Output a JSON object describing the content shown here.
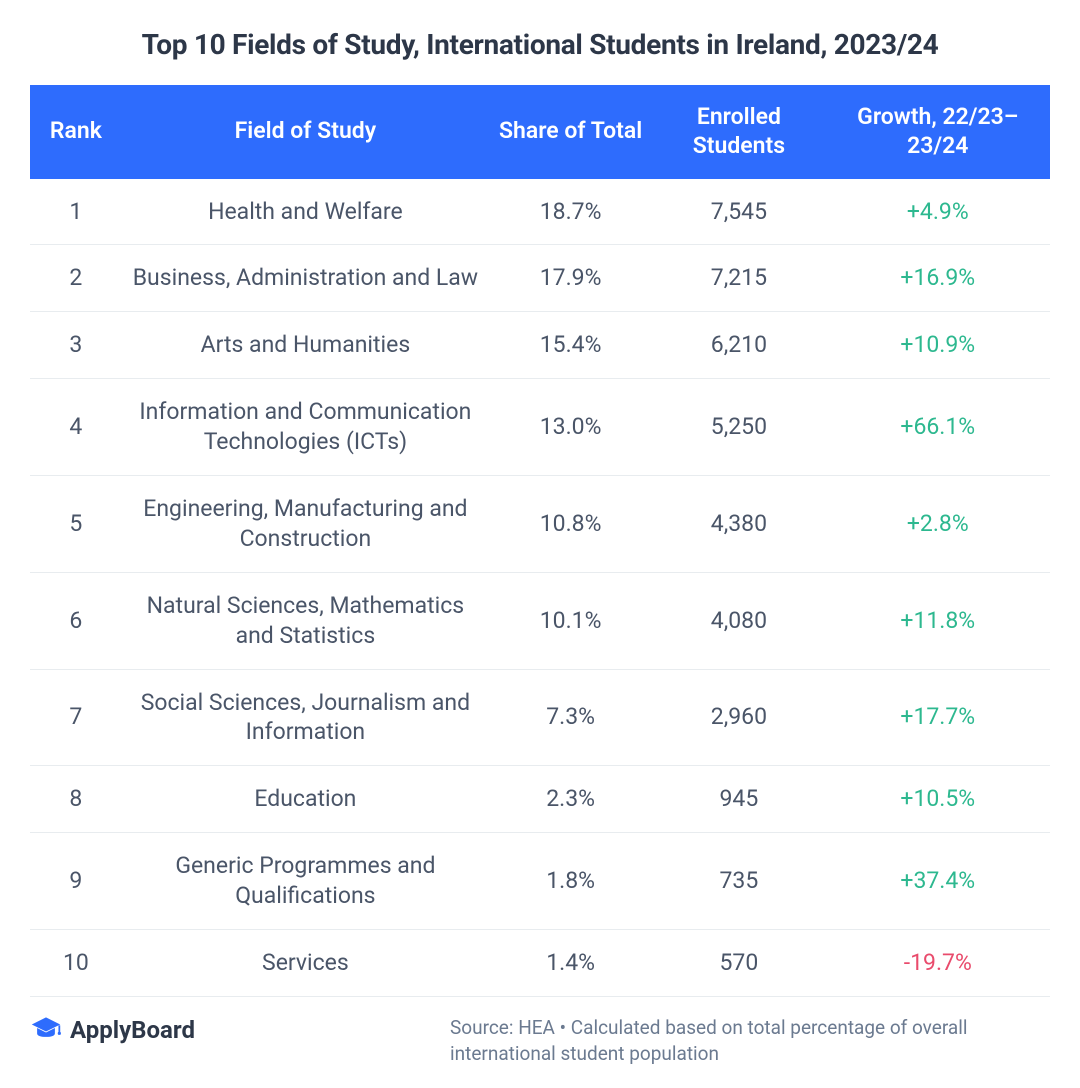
{
  "title": "Top 10 Fields of Study, International Students in Ireland, 2023/24",
  "table": {
    "columns": {
      "rank": "Rank",
      "field": "Field of Study",
      "share": "Share of Total",
      "enrolled": "Enrolled Students",
      "growth": "Growth, 22/23–23/24"
    },
    "rows": [
      {
        "rank": "1",
        "field": "Health and Welfare",
        "share": "18.7%",
        "enrolled": "7,545",
        "growth": "+4.9%",
        "growth_sign": "positive"
      },
      {
        "rank": "2",
        "field": "Business, Administration and Law",
        "share": "17.9%",
        "enrolled": "7,215",
        "growth": "+16.9%",
        "growth_sign": "positive"
      },
      {
        "rank": "3",
        "field": "Arts and Humanities",
        "share": "15.4%",
        "enrolled": "6,210",
        "growth": "+10.9%",
        "growth_sign": "positive"
      },
      {
        "rank": "4",
        "field": "Information and Communication Technologies (ICTs)",
        "share": "13.0%",
        "enrolled": "5,250",
        "growth": "+66.1%",
        "growth_sign": "positive"
      },
      {
        "rank": "5",
        "field": "Engineering, Manufacturing and Construction",
        "share": "10.8%",
        "enrolled": "4,380",
        "growth": "+2.8%",
        "growth_sign": "positive"
      },
      {
        "rank": "6",
        "field": "Natural Sciences, Mathematics and Statistics",
        "share": "10.1%",
        "enrolled": "4,080",
        "growth": "+11.8%",
        "growth_sign": "positive"
      },
      {
        "rank": "7",
        "field": "Social Sciences, Journalism and Information",
        "share": "7.3%",
        "enrolled": "2,960",
        "growth": "+17.7%",
        "growth_sign": "positive"
      },
      {
        "rank": "8",
        "field": "Education",
        "share": "2.3%",
        "enrolled": "945",
        "growth": "+10.5%",
        "growth_sign": "positive"
      },
      {
        "rank": "9",
        "field": "Generic Programmes and Qualifications",
        "share": "1.8%",
        "enrolled": "735",
        "growth": "+37.4%",
        "growth_sign": "positive"
      },
      {
        "rank": "10",
        "field": "Services",
        "share": "1.4%",
        "enrolled": "570",
        "growth": "-19.7%",
        "growth_sign": "negative"
      }
    ]
  },
  "logo": {
    "text": "ApplyBoard"
  },
  "source": "Source: HEA • Calculated based on total percentage of overall international student population",
  "colors": {
    "header_bg": "#2e6cfd",
    "header_text": "#ffffff",
    "body_text": "#4a5568",
    "title_text": "#2d3748",
    "positive": "#2db88f",
    "negative": "#e94b6c",
    "row_border": "#e8ecef",
    "source_text": "#6b7a90",
    "logo_icon": "#2e6cfd"
  }
}
